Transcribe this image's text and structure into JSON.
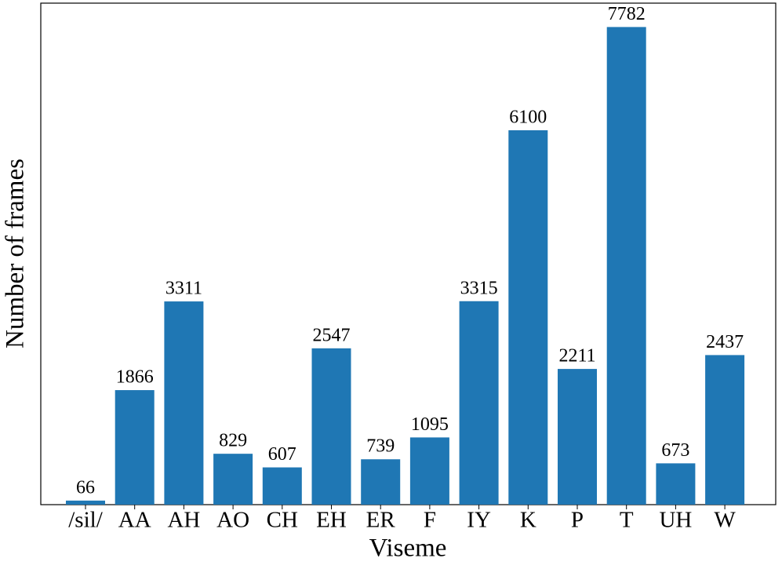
{
  "chart_data": {
    "type": "bar",
    "x_label": "Viseme",
    "y_label": "Number of frames",
    "categories": [
      "/sil/",
      "AA",
      "AH",
      "AO",
      "CH",
      "EH",
      "ER",
      "F",
      "IY",
      "K",
      "P",
      "T",
      "UH",
      "W"
    ],
    "values": [
      66,
      1866,
      3311,
      829,
      607,
      2547,
      739,
      1095,
      3315,
      6100,
      2211,
      7782,
      673,
      2437
    ],
    "color": "#1f77b4",
    "ylim": [
      0,
      8171
    ]
  }
}
